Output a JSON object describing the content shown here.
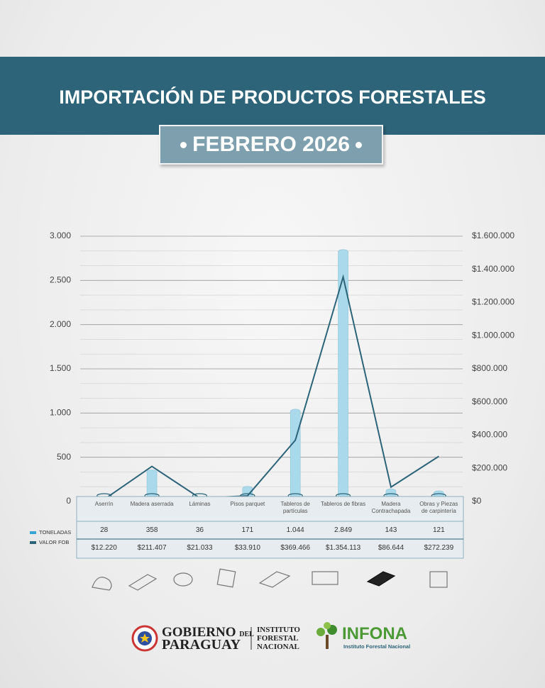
{
  "header": {
    "title": "IMPORTACIÓN DE PRODUCTOS FORESTALES",
    "subtitle": "FEBRERO 2026"
  },
  "chart_data": {
    "type": "bar-line",
    "categories": [
      "Aserrín",
      "Madera aserrada",
      "Láminas",
      "Pisos parquet",
      "Tableros de partículas",
      "Tableros de fibras",
      "Madera Contrachapada",
      "Obras y Piezas de carpintería"
    ],
    "series": [
      {
        "name": "TONELADAS",
        "color": "#a9d9ea",
        "values": [
          28,
          358,
          36,
          171,
          1044,
          2849,
          143,
          121
        ],
        "value_labels": [
          "28",
          "358",
          "36",
          "171",
          "1.044",
          "2.849",
          "143",
          "121"
        ]
      },
      {
        "name": "VALOR FOB",
        "color": "#2d6479",
        "axis": "y2",
        "values": [
          12220,
          211407,
          21033,
          33910,
          369466,
          1354113,
          86644,
          272239
        ],
        "value_labels": [
          "$12.220",
          "$211.407",
          "$21.033",
          "$33.910",
          "$369.466",
          "$1.354.113",
          "$86.644",
          "$272.239"
        ]
      }
    ],
    "ylim": [
      0,
      3000
    ],
    "yticks": [
      0,
      500,
      {
        "value": 1000,
        "label": "1.000"
      },
      {
        "value": 1500,
        "label": "1.500"
      },
      {
        "value": 2000,
        "label": "2.000"
      },
      {
        "value": 2500,
        "label": "2.500"
      },
      {
        "value": 3000,
        "label": "3.000"
      }
    ],
    "y2lim": [
      0,
      1600000
    ],
    "y2ticks": [
      {
        "value": 0,
        "label": "$0"
      },
      {
        "value": 200000,
        "label": "$200.000"
      },
      {
        "value": 400000,
        "label": "$400.000"
      },
      {
        "value": 600000,
        "label": "$600.000"
      },
      {
        "value": 800000,
        "label": "$800.000"
      },
      {
        "value": 1000000,
        "label": "$1.000.000"
      },
      {
        "value": 1200000,
        "label": "$1.200.000"
      },
      {
        "value": 1400000,
        "label": "$1.400.000"
      },
      {
        "value": 1600000,
        "label": "$1.600.000"
      }
    ],
    "grid": true
  },
  "footer": {
    "gobierno": [
      "GOBIERNO",
      "DEL",
      "PARAGUAY"
    ],
    "instituto": [
      "INSTITUTO",
      "FORESTAL",
      "NACIONAL"
    ],
    "infona": "INFONA",
    "infona_sub": "Instituto Forestal Nacional"
  }
}
